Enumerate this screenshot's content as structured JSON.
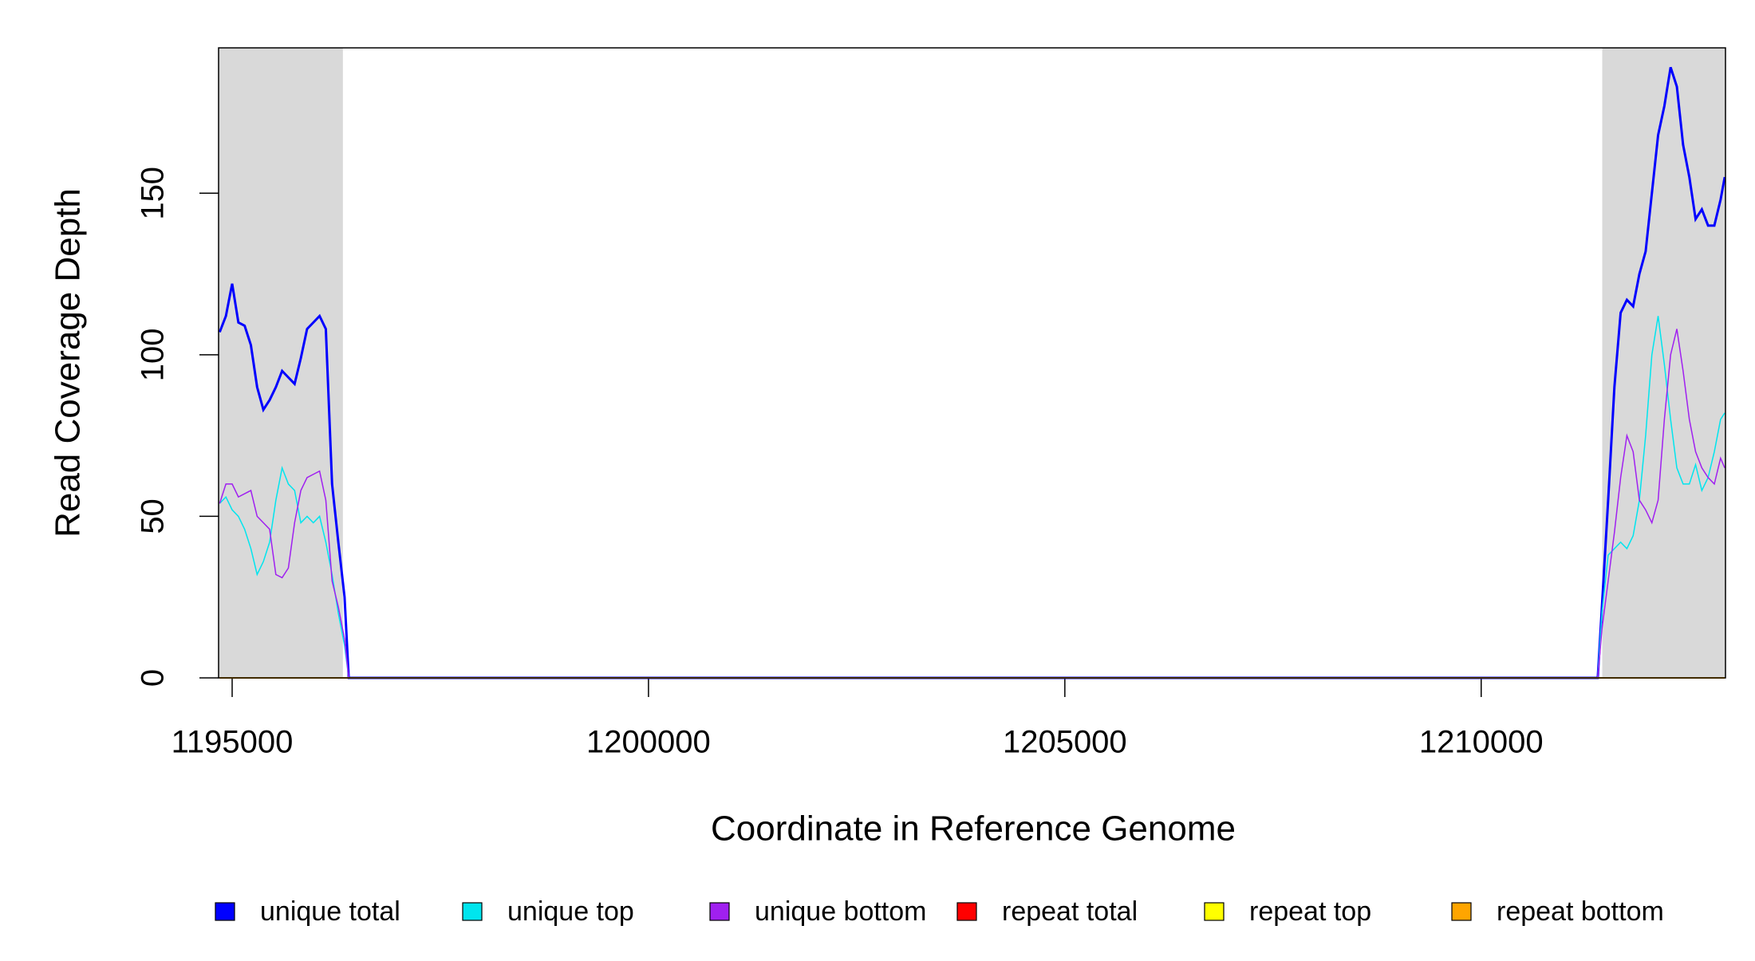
{
  "chart_data": {
    "type": "line",
    "x_label": "Coordinate in Reference Genome",
    "y_label": "Read Coverage Depth",
    "xlim": [
      1194837,
      1212934
    ],
    "ylim": [
      0,
      195
    ],
    "xticks": [
      1195000,
      1200000,
      1205000,
      1210000
    ],
    "yticks": [
      0,
      50,
      100,
      150
    ],
    "highlight_ranges": [
      [
        1194837,
        1196330
      ],
      [
        1211454,
        1212934
      ]
    ],
    "highlight_color": "#d9d9d9",
    "x": [
      1194850,
      1194925,
      1195000,
      1195075,
      1195150,
      1195225,
      1195300,
      1195375,
      1195450,
      1195525,
      1195600,
      1195675,
      1195750,
      1195825,
      1195900,
      1195975,
      1196050,
      1196125,
      1196200,
      1196275,
      1196350,
      1196400,
      1211400,
      1211450,
      1211525,
      1211600,
      1211675,
      1211750,
      1211825,
      1211900,
      1211975,
      1212050,
      1212125,
      1212200,
      1212275,
      1212350,
      1212425,
      1212500,
      1212575,
      1212650,
      1212725,
      1212800,
      1212875,
      1212925
    ],
    "series": [
      {
        "name": "unique total",
        "color": "#0000ff",
        "width": 3,
        "values": [
          107,
          112,
          122,
          110,
          109,
          103,
          90,
          83,
          86,
          90,
          95,
          93,
          91,
          99,
          108,
          110,
          112,
          108,
          60,
          42,
          25,
          0,
          0,
          22,
          55,
          90,
          113,
          117,
          115,
          125,
          132,
          150,
          168,
          177,
          189,
          183,
          165,
          155,
          142,
          145,
          140,
          140,
          148,
          155
        ]
      },
      {
        "name": "unique top",
        "color": "#00e5ee",
        "width": 1.5,
        "values": [
          54,
          56,
          52,
          50,
          46,
          40,
          32,
          36,
          42,
          55,
          65,
          60,
          58,
          48,
          50,
          48,
          50,
          42,
          32,
          20,
          10,
          0,
          0,
          20,
          38,
          40,
          42,
          40,
          44,
          55,
          75,
          100,
          112,
          97,
          80,
          65,
          60,
          60,
          66,
          58,
          62,
          70,
          80,
          82
        ]
      },
      {
        "name": "unique bottom",
        "color": "#a020f0",
        "width": 1.5,
        "values": [
          54,
          60,
          60,
          56,
          57,
          58,
          50,
          48,
          46,
          32,
          31,
          34,
          48,
          58,
          62,
          63,
          64,
          55,
          30,
          22,
          12,
          0,
          0,
          15,
          30,
          45,
          62,
          75,
          70,
          55,
          52,
          48,
          55,
          80,
          100,
          108,
          95,
          80,
          70,
          65,
          62,
          60,
          68,
          65
        ]
      },
      {
        "name": "repeat total",
        "color": "#ff0000",
        "width": 2,
        "values": [
          0,
          0,
          0,
          0,
          0,
          0,
          0,
          0,
          0,
          0,
          0,
          0,
          0,
          0,
          0,
          0,
          0,
          0,
          0,
          0,
          0,
          0,
          0,
          0,
          0,
          0,
          0,
          0,
          0,
          0,
          0,
          0,
          0,
          0,
          0,
          0,
          0,
          0,
          0,
          0,
          0,
          0,
          0,
          0
        ]
      },
      {
        "name": "repeat top",
        "color": "#ffff00",
        "width": 2,
        "values": [
          0,
          0,
          0,
          0,
          0,
          0,
          0,
          0,
          0,
          0,
          0,
          0,
          0,
          0,
          0,
          0,
          0,
          0,
          0,
          0,
          0,
          0,
          0,
          0,
          0,
          0,
          0,
          0,
          0,
          0,
          0,
          0,
          0,
          0,
          0,
          0,
          0,
          0,
          0,
          0,
          0,
          0,
          0,
          0
        ]
      },
      {
        "name": "repeat bottom",
        "color": "#ffa500",
        "width": 2,
        "values": [
          0,
          0,
          0,
          0,
          0,
          0,
          0,
          0,
          0,
          0,
          0,
          0,
          0,
          0,
          0,
          0,
          0,
          0,
          0,
          0,
          0,
          0,
          0,
          0,
          0,
          0,
          0,
          0,
          0,
          0,
          0,
          0,
          0,
          0,
          0,
          0,
          0,
          0,
          0,
          0,
          0,
          0,
          0,
          0
        ]
      }
    ]
  }
}
